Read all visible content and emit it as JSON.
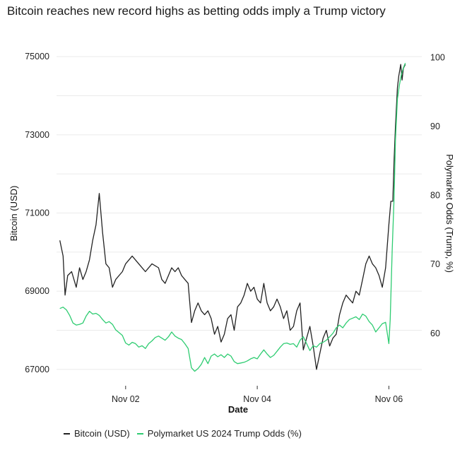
{
  "chart_data": {
    "type": "line",
    "title": "Bitcoin reaches new record highs as betting odds imply a Trump victory",
    "xlabel": "Date",
    "ylabel_left": "Bitcoin (USD)",
    "ylabel_right": "Polymarket Odds (Trump, %)",
    "x_ticks": [
      "Nov 02",
      "Nov 04",
      "Nov 06"
    ],
    "x_tick_days": [
      2,
      4,
      6
    ],
    "xlim_days": [
      0.95,
      6.5
    ],
    "ylim_left": [
      66600,
      75400
    ],
    "yticks_left": [
      67000,
      69000,
      71000,
      73000,
      75000
    ],
    "ylim_right": [
      52.5,
      102.4
    ],
    "yticks_right": [
      60,
      70,
      80,
      90,
      100
    ],
    "legend_position": "bottom-left",
    "grid": true,
    "series": [
      {
        "name": "Bitcoin (USD)",
        "axis": "left",
        "color": "#222222",
        "points": [
          [
            1.0,
            70300
          ],
          [
            1.05,
            69900
          ],
          [
            1.08,
            68900
          ],
          [
            1.12,
            69400
          ],
          [
            1.18,
            69500
          ],
          [
            1.25,
            69100
          ],
          [
            1.3,
            69600
          ],
          [
            1.35,
            69300
          ],
          [
            1.4,
            69500
          ],
          [
            1.45,
            69800
          ],
          [
            1.5,
            70300
          ],
          [
            1.55,
            70700
          ],
          [
            1.6,
            71500
          ],
          [
            1.65,
            70500
          ],
          [
            1.7,
            69700
          ],
          [
            1.75,
            69600
          ],
          [
            1.8,
            69100
          ],
          [
            1.85,
            69300
          ],
          [
            1.9,
            69400
          ],
          [
            1.95,
            69500
          ],
          [
            2.0,
            69700
          ],
          [
            2.1,
            69900
          ],
          [
            2.2,
            69700
          ],
          [
            2.3,
            69500
          ],
          [
            2.4,
            69700
          ],
          [
            2.5,
            69600
          ],
          [
            2.55,
            69300
          ],
          [
            2.6,
            69200
          ],
          [
            2.65,
            69400
          ],
          [
            2.7,
            69600
          ],
          [
            2.75,
            69500
          ],
          [
            2.8,
            69600
          ],
          [
            2.85,
            69400
          ],
          [
            2.9,
            69300
          ],
          [
            2.95,
            69200
          ],
          [
            3.0,
            68200
          ],
          [
            3.05,
            68500
          ],
          [
            3.1,
            68700
          ],
          [
            3.15,
            68500
          ],
          [
            3.2,
            68400
          ],
          [
            3.25,
            68500
          ],
          [
            3.3,
            68300
          ],
          [
            3.35,
            67900
          ],
          [
            3.4,
            68100
          ],
          [
            3.45,
            67700
          ],
          [
            3.5,
            67900
          ],
          [
            3.55,
            68300
          ],
          [
            3.6,
            68400
          ],
          [
            3.65,
            68000
          ],
          [
            3.7,
            68600
          ],
          [
            3.75,
            68700
          ],
          [
            3.8,
            68900
          ],
          [
            3.85,
            69200
          ],
          [
            3.9,
            69000
          ],
          [
            3.95,
            69100
          ],
          [
            4.0,
            68800
          ],
          [
            4.05,
            68700
          ],
          [
            4.1,
            69200
          ],
          [
            4.15,
            68700
          ],
          [
            4.2,
            68500
          ],
          [
            4.25,
            68600
          ],
          [
            4.3,
            68800
          ],
          [
            4.35,
            68600
          ],
          [
            4.4,
            68300
          ],
          [
            4.45,
            68500
          ],
          [
            4.5,
            68000
          ],
          [
            4.55,
            68100
          ],
          [
            4.6,
            68500
          ],
          [
            4.65,
            68700
          ],
          [
            4.7,
            67500
          ],
          [
            4.75,
            67800
          ],
          [
            4.8,
            68100
          ],
          [
            4.85,
            67600
          ],
          [
            4.9,
            67000
          ],
          [
            4.95,
            67400
          ],
          [
            5.0,
            67800
          ],
          [
            5.05,
            68000
          ],
          [
            5.1,
            67600
          ],
          [
            5.15,
            67800
          ],
          [
            5.2,
            67900
          ],
          [
            5.25,
            68400
          ],
          [
            5.3,
            68700
          ],
          [
            5.35,
            68900
          ],
          [
            5.4,
            68800
          ],
          [
            5.45,
            68700
          ],
          [
            5.5,
            69000
          ],
          [
            5.55,
            68900
          ],
          [
            5.6,
            69300
          ],
          [
            5.65,
            69700
          ],
          [
            5.7,
            69900
          ],
          [
            5.75,
            69700
          ],
          [
            5.8,
            69600
          ],
          [
            5.85,
            69400
          ],
          [
            5.9,
            69100
          ],
          [
            5.95,
            69600
          ],
          [
            6.0,
            70700
          ],
          [
            6.03,
            71300
          ],
          [
            6.06,
            71300
          ],
          [
            6.08,
            72400
          ],
          [
            6.1,
            73200
          ],
          [
            6.13,
            74200
          ],
          [
            6.15,
            74500
          ],
          [
            6.18,
            74800
          ],
          [
            6.2,
            74400
          ],
          [
            6.22,
            74700
          ],
          [
            6.25,
            74800
          ]
        ]
      },
      {
        "name": "Polymarket US 2024 Trump Odds (%)",
        "axis": "right",
        "color": "#2ecc71",
        "points": [
          [
            1.0,
            63.6
          ],
          [
            1.05,
            63.8
          ],
          [
            1.1,
            63.4
          ],
          [
            1.15,
            62.6
          ],
          [
            1.2,
            61.5
          ],
          [
            1.25,
            61.2
          ],
          [
            1.3,
            61.3
          ],
          [
            1.35,
            61.5
          ],
          [
            1.4,
            62.5
          ],
          [
            1.45,
            63.2
          ],
          [
            1.5,
            62.8
          ],
          [
            1.55,
            62.9
          ],
          [
            1.6,
            62.6
          ],
          [
            1.65,
            62.0
          ],
          [
            1.7,
            61.5
          ],
          [
            1.75,
            61.7
          ],
          [
            1.8,
            61.3
          ],
          [
            1.85,
            60.5
          ],
          [
            1.9,
            60.1
          ],
          [
            1.95,
            59.7
          ],
          [
            2.0,
            58.6
          ],
          [
            2.05,
            58.3
          ],
          [
            2.1,
            58.7
          ],
          [
            2.15,
            58.5
          ],
          [
            2.2,
            58.0
          ],
          [
            2.25,
            58.2
          ],
          [
            2.3,
            57.8
          ],
          [
            2.35,
            58.5
          ],
          [
            2.4,
            58.9
          ],
          [
            2.45,
            59.4
          ],
          [
            2.5,
            59.6
          ],
          [
            2.55,
            59.3
          ],
          [
            2.6,
            59.0
          ],
          [
            2.65,
            59.5
          ],
          [
            2.7,
            60.2
          ],
          [
            2.75,
            59.6
          ],
          [
            2.8,
            59.3
          ],
          [
            2.85,
            59.1
          ],
          [
            2.9,
            58.5
          ],
          [
            2.95,
            57.8
          ],
          [
            3.0,
            55.0
          ],
          [
            3.05,
            54.5
          ],
          [
            3.1,
            54.9
          ],
          [
            3.15,
            55.5
          ],
          [
            3.2,
            56.5
          ],
          [
            3.25,
            55.6
          ],
          [
            3.3,
            56.7
          ],
          [
            3.35,
            57.0
          ],
          [
            3.4,
            56.6
          ],
          [
            3.45,
            56.9
          ],
          [
            3.5,
            56.5
          ],
          [
            3.55,
            57.0
          ],
          [
            3.6,
            56.7
          ],
          [
            3.65,
            55.9
          ],
          [
            3.7,
            55.6
          ],
          [
            3.75,
            55.7
          ],
          [
            3.8,
            55.8
          ],
          [
            3.85,
            56.0
          ],
          [
            3.9,
            56.3
          ],
          [
            3.95,
            56.5
          ],
          [
            4.0,
            56.3
          ],
          [
            4.05,
            57.0
          ],
          [
            4.1,
            57.6
          ],
          [
            4.15,
            57.0
          ],
          [
            4.2,
            56.5
          ],
          [
            4.25,
            56.8
          ],
          [
            4.3,
            57.4
          ],
          [
            4.35,
            58.0
          ],
          [
            4.4,
            58.5
          ],
          [
            4.45,
            58.6
          ],
          [
            4.5,
            58.4
          ],
          [
            4.55,
            58.5
          ],
          [
            4.6,
            58.0
          ],
          [
            4.65,
            59.0
          ],
          [
            4.7,
            59.5
          ],
          [
            4.75,
            58.5
          ],
          [
            4.8,
            57.5
          ],
          [
            4.85,
            58.2
          ],
          [
            4.9,
            58.0
          ],
          [
            4.95,
            58.5
          ],
          [
            5.0,
            58.7
          ],
          [
            5.05,
            59.0
          ],
          [
            5.1,
            59.5
          ],
          [
            5.15,
            60.0
          ],
          [
            5.2,
            60.8
          ],
          [
            5.25,
            61.2
          ],
          [
            5.3,
            60.8
          ],
          [
            5.35,
            61.5
          ],
          [
            5.4,
            62.0
          ],
          [
            5.45,
            62.2
          ],
          [
            5.5,
            62.4
          ],
          [
            5.55,
            62.0
          ],
          [
            5.6,
            62.8
          ],
          [
            5.65,
            62.5
          ],
          [
            5.7,
            61.7
          ],
          [
            5.75,
            61.2
          ],
          [
            5.8,
            60.2
          ],
          [
            5.85,
            60.8
          ],
          [
            5.9,
            61.4
          ],
          [
            5.95,
            61.6
          ],
          [
            6.0,
            58.5
          ],
          [
            6.02,
            62.0
          ],
          [
            6.05,
            72.0
          ],
          [
            6.08,
            80.0
          ],
          [
            6.1,
            88.0
          ],
          [
            6.13,
            94.0
          ],
          [
            6.16,
            96.0
          ],
          [
            6.19,
            97.5
          ],
          [
            6.22,
            98.5
          ],
          [
            6.25,
            99.2
          ]
        ]
      }
    ]
  }
}
